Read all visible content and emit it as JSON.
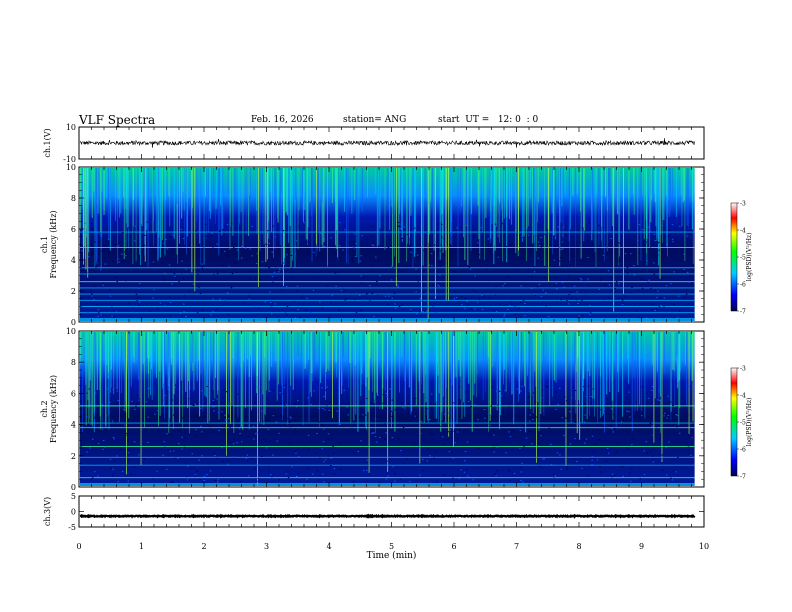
{
  "header": {
    "title": "VLF Spectra",
    "date": "Feb. 16, 2026",
    "station": "station= ANG",
    "start": "start  UT =   12: 0  : 0"
  },
  "colors": {
    "frame": "#000000",
    "spectrogram_low": "#00008b",
    "spectrogram_high": "#ff0000"
  },
  "chart_data": [
    {
      "id": "ch1-waveform",
      "type": "line",
      "ylabel": "ch.1(V)",
      "ylim": [
        -10,
        10
      ],
      "yticks": [
        "10",
        "-10"
      ],
      "xlim": [
        0,
        10
      ],
      "baseline": 0,
      "noise_amplitude": 1.3,
      "data_end_min": 9.85
    },
    {
      "id": "ch1-spectrogram",
      "type": "heatmap",
      "ylabel": "ch.1\nFrequency (kHz)",
      "ylim": [
        0,
        10
      ],
      "yticks": [
        "0",
        "2",
        "4",
        "6",
        "8",
        "10"
      ],
      "xlim": [
        0,
        10
      ],
      "data_end_min": 9.85,
      "colorbar": {
        "label": "log(PSD)(V²/Hz)",
        "range": [
          -7,
          -3
        ],
        "ticks": [
          "-3",
          "-4",
          "-5",
          "-6",
          "-7"
        ]
      },
      "tone_lines_khz": [
        0.6,
        1.0,
        1.4,
        1.8,
        2.2,
        2.6,
        3.1,
        3.5,
        4.8,
        5.8
      ]
    },
    {
      "id": "ch2-spectrogram",
      "type": "heatmap",
      "ylabel": "ch.2\nFrequency (kHz)",
      "ylim": [
        0,
        10
      ],
      "yticks": [
        "0",
        "2",
        "4",
        "6",
        "8",
        "10"
      ],
      "xlim": [
        0,
        10
      ],
      "data_end_min": 9.85,
      "colorbar": {
        "label": "log(PSD)(V²/Hz)",
        "range": [
          -7,
          -3
        ],
        "ticks": [
          "-3",
          "-4",
          "-5",
          "-6",
          "-7"
        ]
      },
      "tone_lines_khz": [
        0.6,
        1.4,
        1.9,
        2.6,
        3.8,
        4.1,
        5.2
      ]
    },
    {
      "id": "ch3-waveform",
      "type": "line",
      "ylabel": "ch.3(V)",
      "ylim": [
        -5,
        5
      ],
      "yticks": [
        "5",
        "0",
        "-5"
      ],
      "xlim": [
        0,
        10
      ],
      "baseline": -1.5,
      "noise_amplitude": 0.15,
      "data_end_min": 9.85
    }
  ],
  "xaxis": {
    "label": "Time  (min)",
    "ticks": [
      "0",
      "1",
      "2",
      "3",
      "4",
      "5",
      "6",
      "7",
      "8",
      "9",
      "10"
    ]
  }
}
